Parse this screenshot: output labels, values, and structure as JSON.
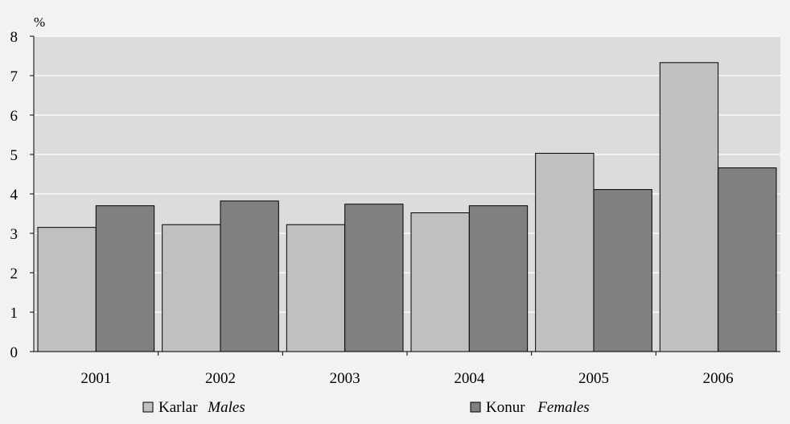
{
  "chart_data": {
    "type": "bar",
    "unit": "%",
    "categories": [
      "2001",
      "2002",
      "2003",
      "2004",
      "2005",
      "2006"
    ],
    "series": [
      {
        "name": "Karlar",
        "name_en": "Males",
        "color": "#c0c0c0",
        "values": [
          3.15,
          3.22,
          3.22,
          3.52,
          5.03,
          7.33
        ]
      },
      {
        "name": "Konur",
        "name_en": "Females",
        "color": "#808080",
        "values": [
          3.7,
          3.82,
          3.74,
          3.7,
          4.11,
          4.66
        ]
      }
    ],
    "yticks": [
      "0",
      "1",
      "2",
      "3",
      "4",
      "5",
      "6",
      "7",
      "8"
    ],
    "ylim": [
      0,
      8
    ],
    "grid": true,
    "plot_background": "#dcdcdc",
    "legend_position": "bottom"
  }
}
